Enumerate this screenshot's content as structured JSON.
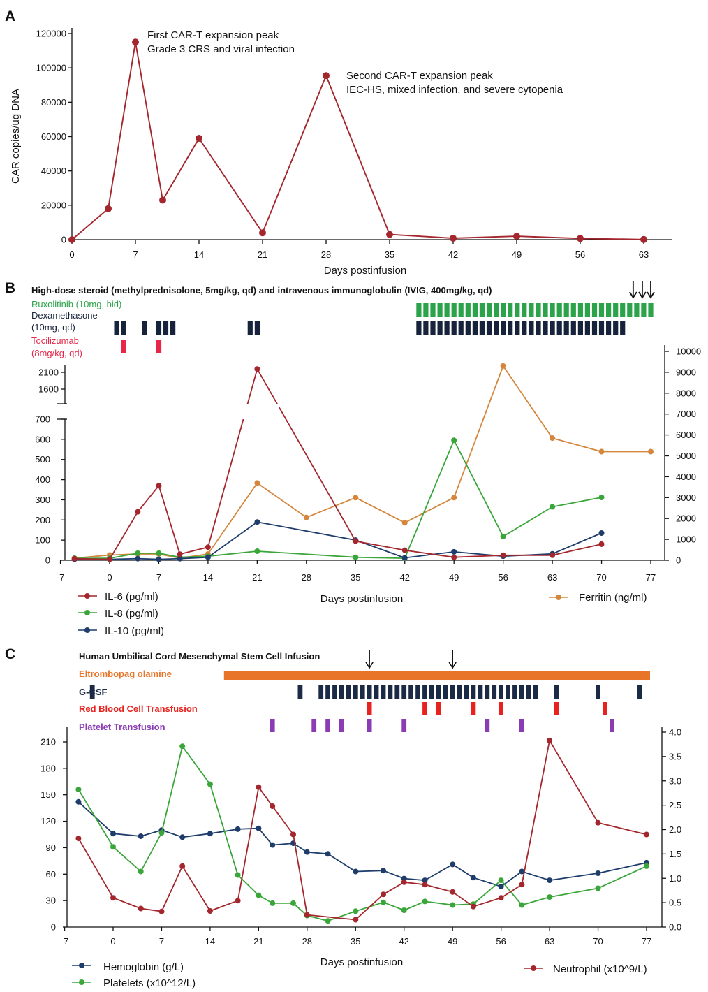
{
  "colors": {
    "car": "#a4272d",
    "il6": "#a4272d",
    "il8": "#3aa63a",
    "il10": "#1f3d6b",
    "ferritin": "#d4873c",
    "ruxolitinib": "#2ca34a",
    "dexamethasone": "#17223b",
    "tocilizumab": "#e8264a",
    "eltrombopag": "#e8742a",
    "gcsf": "#1b2a45",
    "rbc": "#e8231f",
    "platelet_tx": "#8a3cb5",
    "hemoglobin": "#1f3d6b",
    "platelets": "#3aa63a",
    "neutrophil": "#a4272d"
  },
  "panelA": {
    "letter": "A",
    "annotation1": [
      "First CAR-T expansion peak",
      "Grade 3 CRS and viral infection"
    ],
    "annotation2": [
      "Second CAR-T expansion peak",
      "IEC-HS, mixed infection, and severe cytopenia"
    ]
  },
  "panelB": {
    "letter": "B",
    "header": "High-dose steroid (methylprednisolone, 5mg/kg, qd) and intravenous immunoglobulin (IVIG, 400mg/kg, qd)",
    "ruxolitinib_label": "Ruxolitinib (10mg, bid)",
    "dexamethasone_label": [
      "Dexamethasone",
      "(10mg, qd)"
    ],
    "tocilizumab_label": [
      "Tocilizumab",
      "(8mg/kg, qd)"
    ],
    "ruxolitinib_days": [
      44,
      45,
      46,
      47,
      48,
      49,
      50,
      51,
      52,
      53,
      54,
      55,
      56,
      57,
      58,
      59,
      60,
      61,
      62,
      63,
      64,
      65,
      66,
      67,
      68,
      69,
      70,
      71,
      72,
      73,
      74,
      75,
      76,
      77
    ],
    "dexamethasone_days": [
      1,
      2,
      5,
      7,
      8,
      9,
      20,
      21,
      44,
      45,
      46,
      47,
      48,
      49,
      50,
      51,
      52,
      53,
      54,
      55,
      56,
      57,
      58,
      59,
      60,
      61,
      62,
      63,
      64,
      65,
      66,
      67,
      68,
      69,
      70,
      71,
      72,
      73
    ],
    "tocilizumab_days": [
      2,
      7
    ],
    "arrow_days": [
      74.5,
      75.8,
      77
    ]
  },
  "panelC": {
    "letter": "C",
    "msc_label": "Human Umbilical Cord Mesenchymal Stem Cell Infusion",
    "eltrombopag_label": "Eltrombopag olamine",
    "gcsf_label": "G-CSF",
    "rbc_label": "Red Blood Cell Transfusion",
    "platelet_label": "Platelet Transfusion",
    "msc_days": [
      37,
      49
    ],
    "eltrombopag_range": [
      16,
      77
    ],
    "gcsf_days": [
      -3,
      27,
      30,
      31,
      32,
      33,
      34,
      35,
      36,
      37,
      38,
      39,
      40,
      41,
      42,
      43,
      44,
      45,
      46,
      47,
      48,
      49,
      50,
      51,
      52,
      53,
      54,
      55,
      56,
      57,
      58,
      59,
      60,
      61,
      64,
      70,
      76
    ],
    "rbc_days": [
      37,
      45,
      47,
      52,
      56,
      64,
      71
    ],
    "platelet_days": [
      23,
      29,
      31,
      33,
      37,
      42,
      54,
      59,
      72
    ]
  },
  "chart_data": [
    {
      "type": "line",
      "xlabel": "Days postinfusion",
      "ylabel": "CAR copies/ug DNA",
      "xlim": [
        0,
        64
      ],
      "ylim": [
        0,
        120000
      ],
      "xticks": [
        0,
        7,
        14,
        21,
        28,
        35,
        42,
        49,
        56,
        63
      ],
      "yticks": [
        0,
        20000,
        40000,
        60000,
        80000,
        100000,
        120000
      ],
      "series": [
        {
          "x": [
            0,
            4,
            7,
            10,
            14,
            21,
            28,
            35,
            42,
            49,
            56,
            63
          ],
          "y": [
            0,
            18000,
            115000,
            23000,
            59000,
            4000,
            95500,
            3000,
            800,
            2000,
            700,
            100
          ]
        }
      ]
    },
    {
      "type": "line",
      "xlabel": "Days postinfusion",
      "xlim": [
        -7,
        77
      ],
      "xticks": [
        -7,
        0,
        7,
        14,
        21,
        28,
        35,
        42,
        49,
        56,
        63,
        70,
        77
      ],
      "left_axis": {
        "ticks_lower": [
          0,
          100,
          200,
          300,
          400,
          500,
          600,
          700
        ],
        "ticks_upper": [
          1600,
          2100
        ],
        "break": true
      },
      "right_axis": {
        "ylim": [
          0,
          10000
        ],
        "ticks": [
          0,
          1000,
          2000,
          3000,
          4000,
          5000,
          6000,
          7000,
          8000,
          9000,
          10000
        ]
      },
      "legend_left": [
        "IL-6 (pg/ml)",
        "IL-8 (pg/ml)",
        "IL-10 (pg/ml)"
      ],
      "legend_right": "Ferritin (ng/ml)",
      "series": [
        {
          "name": "IL-6 (pg/ml)",
          "axis": "left",
          "x": [
            -5,
            0,
            4,
            7,
            10,
            14,
            21,
            35,
            42,
            49,
            56,
            63,
            70
          ],
          "y": [
            8,
            5,
            240,
            370,
            30,
            65,
            2200,
            95,
            50,
            15,
            25,
            25,
            80
          ]
        },
        {
          "name": "IL-8 (pg/ml)",
          "axis": "left",
          "x": [
            -5,
            0,
            4,
            7,
            10,
            14,
            21,
            35,
            42,
            49,
            56,
            63,
            70
          ],
          "y": [
            10,
            10,
            35,
            35,
            15,
            20,
            45,
            15,
            10,
            595,
            118,
            265,
            312
          ]
        },
        {
          "name": "IL-10 (pg/ml)",
          "axis": "left",
          "x": [
            -5,
            0,
            4,
            7,
            10,
            14,
            21,
            35,
            42,
            49,
            56,
            63,
            70
          ],
          "y": [
            5,
            5,
            8,
            5,
            8,
            15,
            190,
            100,
            12,
            42,
            20,
            32,
            135
          ]
        },
        {
          "name": "Ferritin (ng/ml)",
          "axis": "right",
          "x": [
            -5,
            0,
            4,
            7,
            10,
            14,
            21,
            28,
            35,
            42,
            49,
            56,
            63,
            70,
            77
          ],
          "y": [
            100,
            250,
            300,
            300,
            100,
            300,
            3700,
            2050,
            3000,
            1800,
            3000,
            9300,
            5850,
            5200,
            5200
          ]
        }
      ]
    },
    {
      "type": "line",
      "xlabel": "Days postinfusion",
      "xlim": [
        -7,
        78
      ],
      "xticks": [
        -7,
        0,
        7,
        14,
        21,
        28,
        35,
        42,
        49,
        56,
        63,
        70,
        77
      ],
      "left_axis": {
        "ylim": [
          0,
          220
        ],
        "ticks": [
          0,
          30,
          60,
          90,
          120,
          150,
          180,
          210
        ]
      },
      "right_axis": {
        "ylim": [
          0,
          4.0
        ],
        "ticks": [
          "0.0",
          "0.5",
          "1.0",
          "1.5",
          "2.0",
          "2.5",
          "3.0",
          "3.5",
          "4.0"
        ]
      },
      "legend_left": [
        "Hemoglobin (g/L)",
        "Platelets (x10^12/L)"
      ],
      "legend_right": "Neutrophil (x10^9/L)",
      "series": [
        {
          "name": "Hemoglobin (g/L)",
          "axis": "left",
          "x": [
            -5,
            0,
            4,
            7,
            10,
            14,
            18,
            21,
            23,
            26,
            28,
            31,
            35,
            39,
            42,
            45,
            49,
            52,
            56,
            59,
            63,
            70,
            77
          ],
          "y": [
            142,
            106,
            103,
            110,
            102,
            106,
            111,
            112,
            93,
            95,
            85,
            83,
            63,
            64,
            55,
            53,
            71,
            56,
            46,
            63,
            53,
            61,
            73
          ]
        },
        {
          "name": "Platelets (x10^12/L)",
          "axis": "left",
          "x": [
            -5,
            0,
            4,
            7,
            10,
            14,
            18,
            21,
            23,
            26,
            28,
            31,
            35,
            39,
            42,
            45,
            49,
            52,
            56,
            59,
            63,
            70,
            77
          ],
          "y": [
            156,
            91,
            63,
            107,
            205,
            162,
            59,
            36,
            27,
            27,
            13,
            7,
            18,
            28,
            19,
            29,
            25,
            26,
            53,
            25,
            34,
            44,
            69
          ]
        },
        {
          "name": "Neutrophil (x10^9/L)",
          "axis": "right",
          "x": [
            -5,
            0,
            4,
            7,
            10,
            14,
            18,
            21,
            23,
            26,
            28,
            35,
            39,
            42,
            45,
            49,
            52,
            56,
            59,
            63,
            70,
            77
          ],
          "y": [
            1.82,
            0.6,
            0.38,
            0.32,
            1.25,
            0.33,
            0.54,
            2.87,
            2.48,
            1.9,
            0.25,
            0.15,
            0.67,
            0.92,
            0.87,
            0.72,
            0.42,
            0.6,
            0.87,
            3.83,
            2.14,
            1.9
          ]
        }
      ]
    }
  ]
}
